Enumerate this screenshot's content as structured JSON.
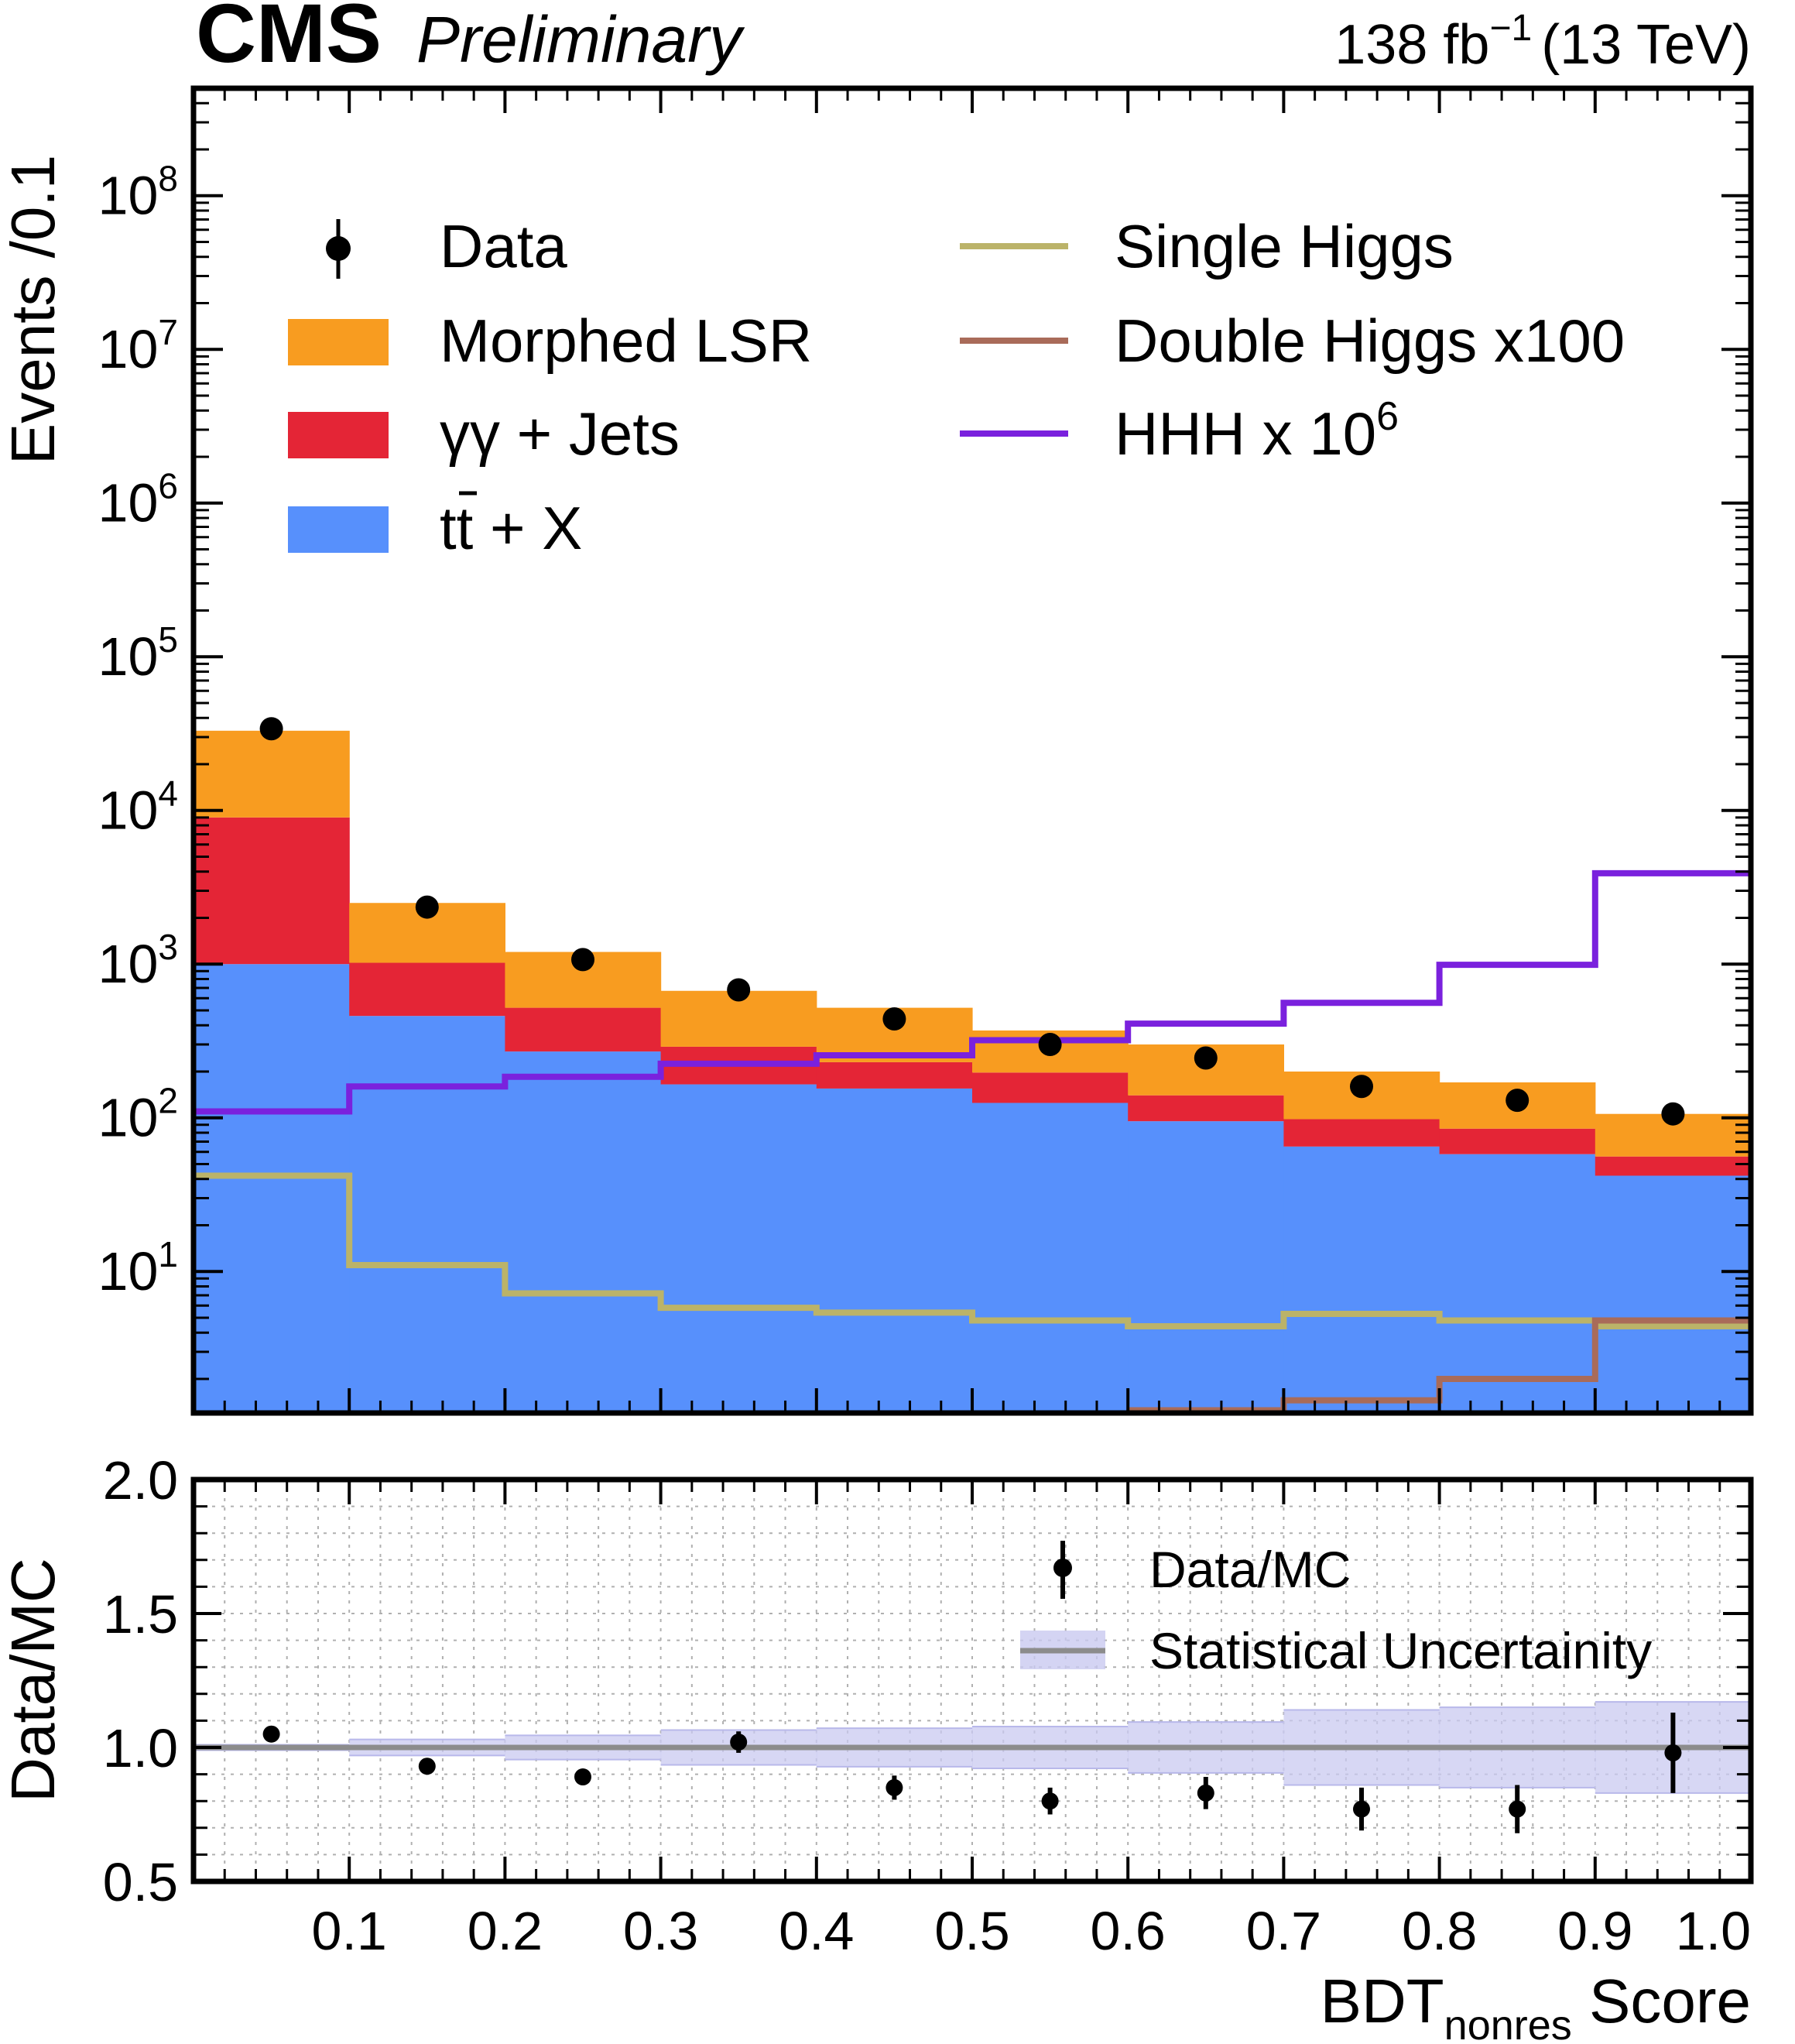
{
  "header": {
    "experiment": "CMS",
    "status": "Preliminary",
    "lumi_value": "138 fb",
    "lumi_exponent": "−1",
    "energy": "(13 TeV)"
  },
  "colors": {
    "morphed_lsr": "#f89c20",
    "gg_jets": "#e42536",
    "ttx": "#5790fc",
    "single_higgs": "#bbb369",
    "double_higgs": "#a96b59",
    "hhh": "#7a21dd",
    "stat_band": "#c9c9f0",
    "ratio_line": "#8c8c8c",
    "grid": "#b0b0b0"
  },
  "chart_data": [
    {
      "id": "main",
      "type": "bar",
      "stacked": true,
      "ylabel": "Events /0.1",
      "yscale": "log",
      "ylim": [
        1.2,
        500000000
      ],
      "xlim": [
        0,
        1
      ],
      "yticks": [
        {
          "base": "10",
          "exp": "1",
          "value": 10
        },
        {
          "base": "10",
          "exp": "2",
          "value": 100
        },
        {
          "base": "10",
          "exp": "3",
          "value": 1000
        },
        {
          "base": "10",
          "exp": "4",
          "value": 10000
        },
        {
          "base": "10",
          "exp": "5",
          "value": 100000
        },
        {
          "base": "10",
          "exp": "6",
          "value": 1000000
        },
        {
          "base": "10",
          "exp": "7",
          "value": 10000000
        },
        {
          "base": "10",
          "exp": "8",
          "value": 100000000
        }
      ],
      "bin_edges": [
        0,
        0.1,
        0.2,
        0.3,
        0.4,
        0.5,
        0.6,
        0.7,
        0.8,
        0.9,
        1.0
      ],
      "stack": [
        {
          "name": "tt + X",
          "color_key": "ttx",
          "values": [
            1000,
            460,
            270,
            165,
            155,
            125,
            95,
            65,
            58,
            42
          ]
        },
        {
          "name": "γγ + Jets",
          "color_key": "gg_jets",
          "values": [
            8000,
            560,
            250,
            125,
            75,
            72,
            45,
            33,
            27,
            14
          ]
        },
        {
          "name": "Morphed LSR",
          "color_key": "morphed_lsr",
          "values": [
            24000,
            1480,
            680,
            380,
            290,
            173,
            160,
            102,
            85,
            50
          ]
        }
      ],
      "lines": [
        {
          "name": "Single Higgs",
          "color_key": "single_higgs",
          "values": [
            42,
            11,
            7.2,
            5.8,
            5.4,
            4.8,
            4.4,
            5.3,
            4.8,
            4.4
          ]
        },
        {
          "name": "Double Higgs x100",
          "color_key": "double_higgs",
          "values": [
            null,
            null,
            null,
            null,
            null,
            null,
            1.25,
            1.45,
            2.0,
            4.8
          ]
        },
        {
          "name": "HHH x 10",
          "color_key": "hhh",
          "values": [
            110,
            160,
            185,
            225,
            255,
            320,
            410,
            560,
            990,
            3900
          ]
        }
      ],
      "data_points": {
        "name": "Data",
        "x": [
          0.05,
          0.15,
          0.25,
          0.35,
          0.45,
          0.55,
          0.65,
          0.75,
          0.85,
          0.95
        ],
        "y": [
          34000,
          2350,
          1070,
          680,
          440,
          300,
          245,
          160,
          130,
          106
        ]
      },
      "legend": [
        {
          "label": "Data",
          "kind": "marker",
          "color_key": ""
        },
        {
          "label": "Morphed LSR",
          "kind": "patch",
          "color_key": "morphed_lsr"
        },
        {
          "label": "γγ + Jets",
          "kind": "patch",
          "color_key": "gg_jets"
        },
        {
          "label": "tt + X",
          "kind": "patch",
          "color_key": "ttx"
        },
        {
          "label": "Single Higgs",
          "kind": "line",
          "color_key": "single_higgs"
        },
        {
          "label": "Double Higgs x100",
          "kind": "line",
          "color_key": "double_higgs"
        },
        {
          "label": "HHH x 10",
          "kind": "line",
          "color_key": "hhh",
          "sup": "6"
        }
      ]
    },
    {
      "id": "ratio",
      "type": "scatter",
      "ylabel": "Data/MC",
      "xlabel_main": "BDT",
      "xlabel_sub": "nonres",
      "xlabel_tail": " Score",
      "ylim": [
        0.5,
        2.0
      ],
      "xlim": [
        0,
        1
      ],
      "grid": true,
      "yticks": [
        "0.5",
        "1.0",
        "1.5",
        "2.0"
      ],
      "xticks": [
        "0.1",
        "0.2",
        "0.3",
        "0.4",
        "0.5",
        "0.6",
        "0.7",
        "0.8",
        "0.9",
        "1.0"
      ],
      "bin_edges": [
        0,
        0.1,
        0.2,
        0.3,
        0.4,
        0.5,
        0.6,
        0.7,
        0.8,
        0.9,
        1.0
      ],
      "stat_unc": [
        0.01,
        0.03,
        0.045,
        0.065,
        0.072,
        0.078,
        0.095,
        0.14,
        0.15,
        0.17
      ],
      "points": {
        "x": [
          0.05,
          0.15,
          0.25,
          0.35,
          0.45,
          0.55,
          0.65,
          0.75,
          0.85,
          0.95
        ],
        "y": [
          1.05,
          0.93,
          0.89,
          1.02,
          0.85,
          0.8,
          0.83,
          0.77,
          0.77,
          0.98
        ],
        "err": [
          0.008,
          0.02,
          0.03,
          0.04,
          0.045,
          0.05,
          0.06,
          0.08,
          0.09,
          0.15
        ]
      },
      "legend": [
        {
          "label": "Data/MC",
          "kind": "marker"
        },
        {
          "label": "Statistical Uncertainity",
          "kind": "band"
        }
      ]
    }
  ]
}
